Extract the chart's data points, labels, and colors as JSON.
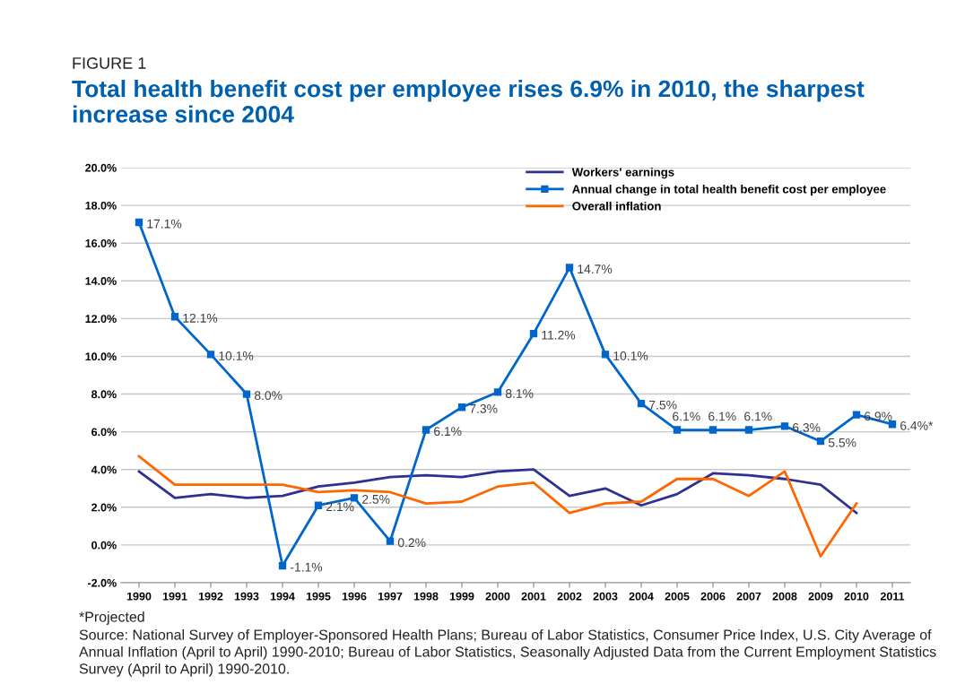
{
  "chart_data": {
    "type": "line",
    "title": "Total health benefit cost per employee rises 6.9% in 2010, the sharpest increase since 2004",
    "subtitle": "FIGURE 1",
    "categories": [
      "1990",
      "1991",
      "1992",
      "1993",
      "1994",
      "1995",
      "1996",
      "1997",
      "1998",
      "1999",
      "2000",
      "2001",
      "2002",
      "2003",
      "2004",
      "2005",
      "2006",
      "2007",
      "2008",
      "2009",
      "2010",
      "2011"
    ],
    "series": [
      {
        "name": "Workers' earnings",
        "color": "#2e3192",
        "marker": "none",
        "values": [
          3.9,
          2.5,
          2.7,
          2.5,
          2.6,
          3.1,
          3.3,
          3.6,
          3.7,
          3.6,
          3.9,
          4.0,
          2.6,
          3.0,
          2.1,
          2.7,
          3.8,
          3.7,
          3.5,
          3.2,
          1.7,
          null
        ]
      },
      {
        "name": "Annual change in total health benefit cost per employee",
        "color": "#0066cc",
        "marker": "square",
        "values": [
          17.1,
          12.1,
          10.1,
          8.0,
          -1.1,
          2.1,
          2.5,
          0.2,
          6.1,
          7.3,
          8.1,
          11.2,
          14.7,
          10.1,
          7.5,
          6.1,
          6.1,
          6.1,
          6.3,
          5.5,
          6.9,
          6.4
        ],
        "value_labels": [
          "17.1%",
          "12.1%",
          "10.1%",
          "8.0%",
          "-1.1%",
          "2.1%",
          "2.5%",
          "0.2%",
          "6.1%",
          "7.3%",
          "8.1%",
          "11.2%",
          "14.7%",
          "10.1%",
          "7.5%",
          "6.1%",
          "6.1%",
          "6.1%",
          "6.3%",
          "5.5%",
          "6.9%",
          "6.4%*"
        ]
      },
      {
        "name": "Overall inflation",
        "color": "#ff6600",
        "marker": "none",
        "values": [
          4.7,
          3.2,
          3.2,
          3.2,
          3.2,
          2.8,
          2.9,
          2.8,
          2.2,
          2.3,
          3.1,
          3.3,
          1.7,
          2.2,
          2.3,
          3.5,
          3.5,
          2.6,
          3.9,
          -0.6,
          2.2,
          null
        ]
      }
    ],
    "ylim": [
      -2,
      20
    ],
    "yticks": [
      {
        "value": -2,
        "label": "-2.0%"
      },
      {
        "value": 0,
        "label": "0.0%"
      },
      {
        "value": 2,
        "label": "2.0%"
      },
      {
        "value": 4,
        "label": "4.0%"
      },
      {
        "value": 6,
        "label": "6.0%"
      },
      {
        "value": 8,
        "label": "8.0%"
      },
      {
        "value": 10,
        "label": "10.0%"
      },
      {
        "value": 12,
        "label": "12.0%"
      },
      {
        "value": 14,
        "label": "14.0%"
      },
      {
        "value": 16,
        "label": "16.0%"
      },
      {
        "value": 18,
        "label": "18.0%"
      },
      {
        "value": 20,
        "label": "20.0%"
      }
    ],
    "grid": "y",
    "legend": "top right",
    "annotations": [
      "*Projected",
      "Source: National Survey of Employer-Sponsored Health Plans; Bureau of Labor Statistics, Consumer Price Index, U.S. City Average of Annual Inflation (April to April) 1990-2010; Bureau of Labor Statistics, Seasonally Adjusted Data from the Current Employment Statistics Survey (April to April) 1990-2010."
    ]
  }
}
